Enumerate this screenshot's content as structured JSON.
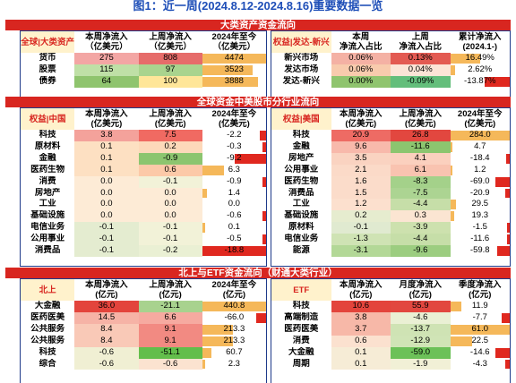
{
  "title": "图1：近一周(2024.8.12-2024.8.16)重要数据一览",
  "colors": {
    "red_bar": "#d82620",
    "header_tag_bg": "#fff2cc",
    "title_blue": "#1f4fb8",
    "border": "#1e3a8a",
    "databar_pos": "#f5b85a",
    "databar_neg": "#e0281f"
  },
  "section1": {
    "bar": "大类资产资金流向",
    "left": {
      "headers": [
        "全球|大类资产",
        "本周净流入\n（亿美元）",
        "上周净流入\n（亿美元）",
        "2024年至今\n（亿美元）"
      ],
      "rows": [
        {
          "name": "货币",
          "cells": [
            "275",
            "808",
            "4474"
          ],
          "bg": [
            "#f3a6a4",
            "#e66c6a",
            ""
          ],
          "bars": [
            null,
            null,
            1.0
          ]
        },
        {
          "name": "股票",
          "cells": [
            "115",
            "97",
            "3523"
          ],
          "bg": [
            "#bfe0a6",
            "#a9d48e",
            ""
          ],
          "bars": [
            null,
            null,
            0.79
          ]
        },
        {
          "name": "债券",
          "cells": [
            "64",
            "100",
            "3888"
          ],
          "bg": [
            "#8fc46e",
            "#ffe699",
            ""
          ],
          "bars": [
            null,
            null,
            0.87
          ]
        }
      ]
    },
    "right": {
      "headers": [
        "权益|发达-新兴",
        "本周\n净流入占比",
        "上周\n净流入占比",
        "累计净流入\n(2024.1-)"
      ],
      "rows": [
        {
          "name": "新兴市场",
          "cells": [
            "0.06%",
            "0.13%",
            "16.49%"
          ],
          "bg": [
            "#f4b1a4",
            "#e35a52",
            ""
          ],
          "bars": [
            null,
            null,
            0.5
          ]
        },
        {
          "name": "发达市场",
          "cells": [
            "0.06%",
            "0.04%",
            "2.62%"
          ],
          "bg": [
            "#f8cbad",
            "#fce4d6",
            ""
          ],
          "bars": [
            null,
            null,
            0.08
          ]
        },
        {
          "name": "发达-新兴",
          "cells": [
            "0.00%",
            "-0.09%",
            "-13.87%"
          ],
          "bg": [
            "#8fc46e",
            "#63be7b",
            ""
          ],
          "bars": [
            null,
            null,
            -0.42
          ]
        }
      ]
    }
  },
  "section2": {
    "bar": "全球资金中美股市分行业流向",
    "left": {
      "headers": [
        "权益|中国",
        "本周净流入\n(亿美元)",
        "上周净流入\n(亿美元)",
        "2024年至今\n(亿美元)"
      ],
      "rows": [
        {
          "name": "科技",
          "cells": [
            "3.8",
            "7.5",
            "-2.2"
          ],
          "bg": [
            "#f4a29b",
            "#f06a62",
            ""
          ],
          "bars": [
            null,
            null,
            -0.1
          ]
        },
        {
          "name": "原材料",
          "cells": [
            "0.1",
            "0.2",
            "-0.3"
          ],
          "bg": [
            "#fde0c2",
            "#fdd9ba",
            ""
          ],
          "bars": [
            null,
            null,
            -0.02
          ]
        },
        {
          "name": "金融",
          "cells": [
            "0.1",
            "-0.9",
            "-9.2"
          ],
          "bg": [
            "#fde0c2",
            "#8cc56f",
            ""
          ],
          "bars": [
            null,
            null,
            -0.49
          ]
        },
        {
          "name": "医药生物",
          "cells": [
            "0.1",
            "0.6",
            "6.3"
          ],
          "bg": [
            "#fde0c2",
            "#fcc9a8",
            ""
          ],
          "bars": [
            null,
            null,
            0.34
          ]
        },
        {
          "name": "消费",
          "cells": [
            "0.0",
            "-0.1",
            "-0.9"
          ],
          "bg": [
            "#fdebd6",
            "#f2f2d8",
            ""
          ],
          "bars": [
            null,
            null,
            -0.05
          ]
        },
        {
          "name": "房地产",
          "cells": [
            "0.0",
            "0.0",
            "1.4"
          ],
          "bg": [
            "#fdebd6",
            "#fdebd6",
            ""
          ],
          "bars": [
            null,
            null,
            0.07
          ]
        },
        {
          "name": "工业",
          "cells": [
            "0.0",
            "0.0",
            "0.0"
          ],
          "bg": [
            "#fdebd6",
            "#fdebd6",
            ""
          ],
          "bars": [
            null,
            null,
            0
          ]
        },
        {
          "name": "基础设施",
          "cells": [
            "0.0",
            "0.0",
            "-0.6"
          ],
          "bg": [
            "#fdebd6",
            "#fdebd6",
            ""
          ],
          "bars": [
            null,
            null,
            -0.03
          ]
        },
        {
          "name": "电信业务",
          "cells": [
            "-0.1",
            "-0.1",
            "0.1"
          ],
          "bg": [
            "#e4ecd0",
            "#f2f2d8",
            ""
          ],
          "bars": [
            null,
            null,
            0.01
          ]
        },
        {
          "name": "公用事业",
          "cells": [
            "-0.1",
            "-0.1",
            "-0.5"
          ],
          "bg": [
            "#e4ecd0",
            "#f2f2d8",
            ""
          ],
          "bars": [
            null,
            null,
            -0.03
          ]
        },
        {
          "name": "消费品",
          "cells": [
            "-0.1",
            "-0.2",
            "-18.8"
          ],
          "bg": [
            "#e4ecd0",
            "#eaf0d4",
            ""
          ],
          "bars": [
            null,
            null,
            -1.0
          ]
        }
      ]
    },
    "right": {
      "headers": [
        "权益|美国",
        "本周净流入\n(亿美元)",
        "上周净流入\n(亿美元)",
        "2024年至今\n(亿美元)"
      ],
      "rows": [
        {
          "name": "科技",
          "cells": [
            "20.9",
            "26.8",
            "284.0"
          ],
          "bg": [
            "#ee6b64",
            "#e2473f",
            ""
          ],
          "bars": [
            null,
            null,
            1.0
          ]
        },
        {
          "name": "金融",
          "cells": [
            "9.6",
            "-11.6",
            "4.7"
          ],
          "bg": [
            "#f8b9ab",
            "#8cc56f",
            ""
          ],
          "bars": [
            null,
            null,
            0.02
          ]
        },
        {
          "name": "房地产",
          "cells": [
            "3.5",
            "4.1",
            "-18.4"
          ],
          "bg": [
            "#fad3c1",
            "#fbd0be",
            ""
          ],
          "bars": [
            null,
            null,
            -0.06
          ]
        },
        {
          "name": "公用事业",
          "cells": [
            "2.1",
            "6.1",
            "1.2"
          ],
          "bg": [
            "#fbdac8",
            "#f9c3b0",
            ""
          ],
          "bars": [
            null,
            null,
            0.004
          ]
        },
        {
          "name": "医药生物",
          "cells": [
            "1.6",
            "-8.3",
            "-69.0"
          ],
          "bg": [
            "#fbdcca",
            "#a4d18a",
            ""
          ],
          "bars": [
            null,
            null,
            -0.24
          ]
        },
        {
          "name": "消费品",
          "cells": [
            "1.5",
            "-7.5",
            "-20.9"
          ],
          "bg": [
            "#fbdcca",
            "#acd492",
            ""
          ],
          "bars": [
            null,
            null,
            -0.07
          ]
        },
        {
          "name": "工业",
          "cells": [
            "1.2",
            "-4.4",
            "29.5"
          ],
          "bg": [
            "#fce0ce",
            "#c6dea8",
            ""
          ],
          "bars": [
            null,
            null,
            0.1
          ]
        },
        {
          "name": "基础设施",
          "cells": [
            "0.2",
            "0.3",
            "19.3"
          ],
          "bg": [
            "#e6eccf",
            "#fbe5d2",
            ""
          ],
          "bars": [
            null,
            null,
            0.07
          ]
        },
        {
          "name": "原材料",
          "cells": [
            "-0.1",
            "-3.9",
            "-1.5"
          ],
          "bg": [
            "#e0ead0",
            "#cde1ae",
            ""
          ],
          "bars": [
            null,
            null,
            -0.005
          ]
        },
        {
          "name": "电信业务",
          "cells": [
            "-1.3",
            "-4.4",
            "-11.6"
          ],
          "bg": [
            "#cfe3b4",
            "#c6dea8",
            ""
          ],
          "bars": [
            null,
            null,
            -0.04
          ]
        },
        {
          "name": "能源",
          "cells": [
            "-3.1",
            "-9.6",
            "-59.8"
          ],
          "bg": [
            "#b3d897",
            "#9ccd80",
            ""
          ],
          "bars": [
            null,
            null,
            -0.21
          ]
        }
      ]
    }
  },
  "section3": {
    "bar": "北上与ETF资金流向（财通大类行业）",
    "left": {
      "headers": [
        "北上",
        "本周净流入\n(亿元)",
        "上周净流入\n(亿元)",
        "2024年至今\n(亿元)"
      ],
      "rows": [
        {
          "name": "大金融",
          "cells": [
            "36.0",
            "-21.1",
            "440.8"
          ],
          "bg": [
            "#e3443c",
            "#a8d28e",
            ""
          ],
          "bars": [
            null,
            null,
            1.0
          ]
        },
        {
          "name": "医药医美",
          "cells": [
            "14.5",
            "6.6",
            "-66.0"
          ],
          "bg": [
            "#f6b3a6",
            "#f6aaa0",
            ""
          ],
          "bars": [
            null,
            null,
            -0.15
          ]
        },
        {
          "name": "公共服务",
          "cells": [
            "8.4",
            "9.1",
            "213.3"
          ],
          "bg": [
            "#f9c9b7",
            "#f28a82",
            ""
          ],
          "bars": [
            null,
            null,
            0.48
          ]
        },
        {
          "name": "公共服务",
          "cells": [
            "8.4",
            "9.1",
            "213.3"
          ],
          "bg": [
            "#f9c9b7",
            "#f28a82",
            ""
          ],
          "bars": [
            null,
            null,
            0.48
          ]
        },
        {
          "name": "科技",
          "cells": [
            "-0.6",
            "-51.1",
            "60.7"
          ],
          "bg": [
            "#f0efd3",
            "#63be4b",
            ""
          ],
          "bars": [
            null,
            null,
            0.14
          ]
        },
        {
          "name": "综合",
          "cells": [
            "-0.6",
            "-0.6",
            "2.3"
          ],
          "bg": [
            "#f0efd3",
            "#fbe3d0",
            ""
          ],
          "bars": [
            null,
            null,
            0.005
          ]
        }
      ]
    },
    "right": {
      "headers": [
        "ETF",
        "本周净流入\n(亿元)",
        "月度净流入\n(亿元)",
        "季度净流入\n(亿元)"
      ],
      "rows": [
        {
          "name": "科技",
          "cells": [
            "10.6",
            "55.9",
            "11.9"
          ],
          "bg": [
            "#e3443c",
            "#e2473f",
            ""
          ],
          "bars": [
            null,
            null,
            0.19
          ]
        },
        {
          "name": "高端制造",
          "cells": [
            "3.8",
            "-4.6",
            "-7.7"
          ],
          "bg": [
            "#f7b8a8",
            "#eaf0d4",
            ""
          ],
          "bars": [
            null,
            null,
            -0.13
          ]
        },
        {
          "name": "医药医美",
          "cells": [
            "3.7",
            "-13.7",
            "61.0"
          ],
          "bg": [
            "#f7b8a8",
            "#cfe3b4",
            ""
          ],
          "bars": [
            null,
            null,
            1.0
          ]
        },
        {
          "name": "消费",
          "cells": [
            "0.6",
            "-12.9",
            "22.5"
          ],
          "bg": [
            "#fbe1cf",
            "#d0e4b6",
            ""
          ],
          "bars": [
            null,
            null,
            0.37
          ]
        },
        {
          "name": "大金融",
          "cells": [
            "0.1",
            "-59.0",
            "-14.6"
          ],
          "bg": [
            "#f6ecd6",
            "#6cc158",
            ""
          ],
          "bars": [
            null,
            null,
            -0.24
          ]
        },
        {
          "name": "周期",
          "cells": [
            "0.1",
            "-1.9",
            "-4.3"
          ],
          "bg": [
            "#f6ecd6",
            "#f1f0d6",
            ""
          ],
          "bars": [
            null,
            null,
            -0.07
          ]
        }
      ]
    }
  }
}
